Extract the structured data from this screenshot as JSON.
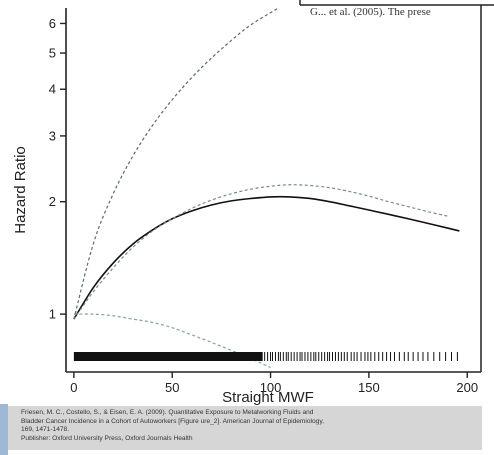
{
  "top_snippet": "G... et al. (2005). The prese",
  "citation": {
    "lines": [
      "Friesen, M. C., Costello, S., & Eisen, E. A. (2009). Quantitative Exposure to Metalworking Fluids and",
      "Bladder Cancer Incidence in a Cohort of Autoworkers [Figure ure_2]. American Journal of Epidemiology,",
      "169, 1471-1478.",
      "Publisher: Oxford University Press, Oxford Journals Health"
    ]
  },
  "chart_data": {
    "type": "line",
    "title": "",
    "xlabel": "Straight MWF",
    "ylabel": "Hazard Ratio",
    "xlim": [
      -4,
      207
    ],
    "ylim": [
      0.7,
      6.6
    ],
    "y_scale": "log",
    "x_ticks": [
      0,
      50,
      100,
      150,
      200
    ],
    "x_tick_labels": [
      "0",
      "50",
      "100",
      "150",
      "200"
    ],
    "y_ticks": [
      1,
      2,
      3,
      4,
      5,
      6
    ],
    "y_tick_labels": [
      "1",
      "2",
      "3",
      "4",
      "5",
      "6"
    ],
    "grid": false,
    "legend": "none",
    "series": [
      {
        "style": "solid",
        "color": "#111111",
        "x": [
          0,
          10,
          20,
          30,
          40,
          50,
          60,
          70,
          80,
          90,
          100,
          110,
          120,
          130,
          140,
          150,
          160,
          170,
          180,
          190,
          196
        ],
        "y": [
          0.97,
          1.18,
          1.37,
          1.54,
          1.68,
          1.8,
          1.89,
          1.96,
          2.01,
          2.04,
          2.06,
          2.06,
          2.04,
          2.0,
          1.95,
          1.9,
          1.85,
          1.8,
          1.75,
          1.7,
          1.67
        ]
      },
      {
        "style": "dash",
        "color": "#7a8a88",
        "x": [
          0,
          10,
          20,
          30,
          40,
          50,
          60,
          70,
          80,
          90,
          100,
          110,
          120,
          130,
          140,
          150,
          160,
          170,
          180,
          190
        ],
        "y": [
          0.97,
          1.15,
          1.33,
          1.51,
          1.67,
          1.8,
          1.92,
          2.02,
          2.1,
          2.16,
          2.2,
          2.22,
          2.21,
          2.18,
          2.13,
          2.07,
          2.0,
          1.94,
          1.88,
          1.83
        ]
      },
      {
        "style": "dash",
        "color": "#5b6b6d",
        "x": [
          0,
          10,
          20,
          30,
          40,
          50,
          60,
          70,
          80,
          90,
          104
        ],
        "y": [
          0.97,
          1.55,
          2.1,
          2.65,
          3.2,
          3.75,
          4.3,
          4.85,
          5.4,
          5.95,
          6.6
        ]
      },
      {
        "style": "dash",
        "color": "#7fa3a6",
        "x": [
          0,
          10,
          20,
          30,
          40,
          50,
          60,
          70,
          80,
          90,
          100
        ],
        "y": [
          1.0,
          1.0,
          0.99,
          0.97,
          0.95,
          0.92,
          0.88,
          0.84,
          0.8,
          0.76,
          0.72
        ]
      }
    ],
    "rug": {
      "dense_until": 96,
      "x": [
        97,
        98.5,
        100,
        101,
        102.5,
        104,
        105,
        106.5,
        108,
        109,
        110.5,
        112,
        113.5,
        115,
        116,
        117.5,
        119,
        120.5,
        122,
        123,
        124.5,
        126,
        127.5,
        129,
        130,
        131.5,
        133,
        134.5,
        136,
        137.5,
        139,
        141,
        142.5,
        144,
        146,
        148,
        149.5,
        151,
        153,
        155,
        157,
        159,
        161,
        163,
        165.5,
        168,
        170,
        172.5,
        175,
        177.5,
        180,
        183,
        186,
        189,
        192,
        195
      ]
    }
  }
}
